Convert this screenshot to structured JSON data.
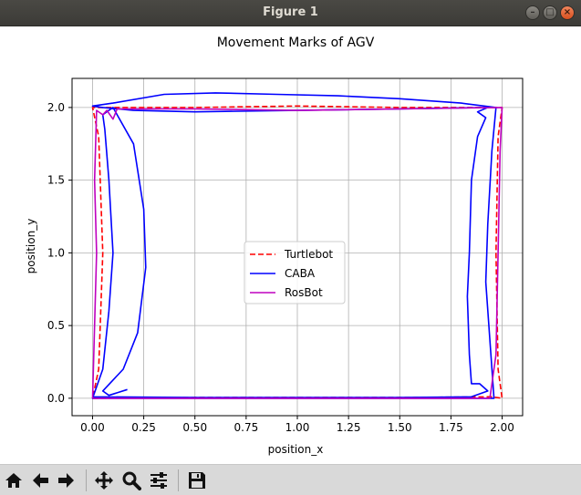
{
  "window": {
    "title": "Figure 1"
  },
  "window_buttons": {
    "minimize": "–",
    "maximize": "□",
    "close": "×"
  },
  "toolbar": {
    "buttons": [
      {
        "name": "home-button",
        "icon": "home-icon"
      },
      {
        "name": "back-button",
        "icon": "arrow-left-icon"
      },
      {
        "name": "forward-button",
        "icon": "arrow-right-icon"
      },
      {
        "name": "pan-button",
        "icon": "move-icon"
      },
      {
        "name": "zoom-button",
        "icon": "magnifier-icon"
      },
      {
        "name": "configure-subplots-button",
        "icon": "sliders-icon"
      },
      {
        "name": "save-button",
        "icon": "floppy-disk-icon"
      }
    ]
  },
  "chart_data": {
    "type": "line",
    "title": "Movement Marks of AGV",
    "xlabel": "position_x",
    "ylabel": "position_y",
    "xlim": [
      -0.1,
      2.1
    ],
    "ylim": [
      -0.12,
      2.2
    ],
    "xticks": [
      "0.00",
      "0.25",
      "0.50",
      "0.75",
      "1.00",
      "1.25",
      "1.50",
      "1.75",
      "2.00"
    ],
    "xtick_values": [
      0,
      0.25,
      0.5,
      0.75,
      1.0,
      1.25,
      1.5,
      1.75,
      2.0
    ],
    "yticks": [
      "0.0",
      "0.5",
      "1.0",
      "1.5",
      "2.0"
    ],
    "ytick_values": [
      0,
      0.5,
      1.0,
      1.5,
      2.0
    ],
    "grid": true,
    "legend_position": "center",
    "series": [
      {
        "name": "Turtlebot",
        "color": "#ff0000",
        "style": "dashed",
        "points": [
          [
            0,
            0
          ],
          [
            0.5,
            0.005
          ],
          [
            1,
            0.005
          ],
          [
            1.5,
            0.005
          ],
          [
            1.95,
            0.01
          ],
          [
            2,
            0
          ],
          [
            1.98,
            0.2
          ],
          [
            1.97,
            1.0
          ],
          [
            1.98,
            1.8
          ],
          [
            2,
            2
          ],
          [
            1.5,
            2.0
          ],
          [
            1,
            2.01
          ],
          [
            0.5,
            2.0
          ],
          [
            0,
            2
          ],
          [
            0.03,
            1.8
          ],
          [
            0.05,
            1.0
          ],
          [
            0.03,
            0.2
          ],
          [
            0,
            0
          ]
        ]
      },
      {
        "name": "CABA",
        "color": "#0000ff",
        "style": "solid",
        "points": [
          [
            0,
            0.01
          ],
          [
            0.5,
            0.005
          ],
          [
            1,
            0.005
          ],
          [
            1.5,
            0.005
          ],
          [
            1.85,
            0.01
          ],
          [
            1.93,
            0.05
          ],
          [
            1.89,
            0.1
          ],
          [
            1.85,
            0.1
          ],
          [
            1.84,
            0.3
          ],
          [
            1.83,
            0.7
          ],
          [
            1.84,
            1.0
          ],
          [
            1.85,
            1.5
          ],
          [
            1.88,
            1.8
          ],
          [
            1.92,
            1.93
          ],
          [
            1.88,
            1.97
          ],
          [
            1.93,
            2.0
          ],
          [
            1.5,
            1.99
          ],
          [
            1.0,
            1.98
          ],
          [
            0.5,
            1.97
          ],
          [
            0.2,
            1.98
          ],
          [
            0.05,
            2.0
          ],
          [
            0,
            2.01
          ],
          [
            0.1,
            2.03
          ],
          [
            0.35,
            2.09
          ],
          [
            0.6,
            2.1
          ],
          [
            0.9,
            2.09
          ],
          [
            1.2,
            2.08
          ],
          [
            1.5,
            2.06
          ],
          [
            1.8,
            2.03
          ],
          [
            1.97,
            2.0
          ],
          [
            1.95,
            1.7
          ],
          [
            1.93,
            1.2
          ],
          [
            1.92,
            0.8
          ],
          [
            1.94,
            0.4
          ],
          [
            1.96,
            0.0
          ],
          [
            1.8,
            0.0
          ],
          [
            1.5,
            0.0
          ],
          [
            1.0,
            0.0
          ],
          [
            0.5,
            0.0
          ],
          [
            0.1,
            0.0
          ],
          [
            0.0,
            0.0
          ],
          [
            0.05,
            0.2
          ],
          [
            0.08,
            0.6
          ],
          [
            0.1,
            1.0
          ],
          [
            0.08,
            1.5
          ],
          [
            0.06,
            1.85
          ],
          [
            0.05,
            1.95
          ],
          [
            0.1,
            2.0
          ],
          [
            0.2,
            1.75
          ],
          [
            0.25,
            1.3
          ],
          [
            0.26,
            0.9
          ],
          [
            0.22,
            0.45
          ],
          [
            0.15,
            0.2
          ],
          [
            0.05,
            0.05
          ],
          [
            0.08,
            0.02
          ],
          [
            0.17,
            0.06
          ]
        ]
      },
      {
        "name": "RosBot",
        "color": "#bf00bf",
        "style": "solid",
        "points": [
          [
            0,
            0
          ],
          [
            0.5,
            0.0
          ],
          [
            1,
            0.0
          ],
          [
            1.5,
            0.0
          ],
          [
            1.94,
            0.0
          ],
          [
            1.97,
            0.3
          ],
          [
            1.98,
            1.0
          ],
          [
            1.99,
            1.7
          ],
          [
            2,
            2
          ],
          [
            1.5,
            1.99
          ],
          [
            1,
            1.98
          ],
          [
            0.5,
            1.99
          ],
          [
            0.12,
            1.99
          ],
          [
            0.1,
            1.92
          ],
          [
            0.07,
            1.98
          ],
          [
            0.05,
            1.95
          ],
          [
            0.02,
            1.98
          ],
          [
            0.01,
            1.5
          ],
          [
            0.02,
            1.0
          ],
          [
            0.01,
            0.5
          ],
          [
            0,
            0
          ]
        ]
      }
    ]
  }
}
